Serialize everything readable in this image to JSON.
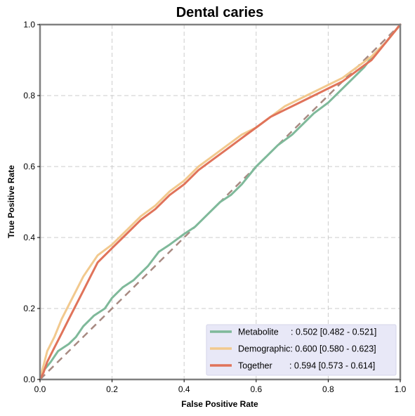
{
  "chart_data": {
    "type": "line",
    "title": "Dental caries",
    "xlabel": "False Positive Rate",
    "ylabel": "True Positive Rate",
    "xlim": [
      0,
      1
    ],
    "ylim": [
      0,
      1
    ],
    "xticks": [
      "0.0",
      "0.2",
      "0.4",
      "0.6",
      "0.8",
      "1.0"
    ],
    "yticks": [
      "0.0",
      "0.2",
      "0.4",
      "0.6",
      "0.8",
      "1.0"
    ],
    "grid": true,
    "legend_position": "bottom-right",
    "diagonal": {
      "color": "#a88a82",
      "style": "dashed"
    },
    "series": [
      {
        "name": "Metabolite",
        "legend_label": "Metabolite     : 0.502 [0.482 - 0.521]",
        "color": "#7fb99a",
        "x": [
          0,
          0.01,
          0.03,
          0.05,
          0.08,
          0.1,
          0.12,
          0.15,
          0.18,
          0.2,
          0.23,
          0.26,
          0.3,
          0.33,
          0.36,
          0.4,
          0.43,
          0.46,
          0.5,
          0.53,
          0.56,
          0.6,
          0.63,
          0.66,
          0.7,
          0.73,
          0.76,
          0.8,
          0.83,
          0.86,
          0.9,
          0.93,
          0.96,
          1.0
        ],
        "y": [
          0,
          0.025,
          0.05,
          0.08,
          0.1,
          0.12,
          0.15,
          0.18,
          0.2,
          0.23,
          0.26,
          0.28,
          0.32,
          0.36,
          0.38,
          0.41,
          0.43,
          0.46,
          0.5,
          0.52,
          0.55,
          0.6,
          0.63,
          0.66,
          0.69,
          0.72,
          0.75,
          0.78,
          0.81,
          0.84,
          0.88,
          0.92,
          0.95,
          1.0
        ]
      },
      {
        "name": "Demographic",
        "legend_label": "Demographic: 0.600 [0.580 - 0.623]",
        "color": "#f2c98e",
        "x": [
          0,
          0.01,
          0.02,
          0.04,
          0.06,
          0.08,
          0.1,
          0.12,
          0.14,
          0.16,
          0.2,
          0.24,
          0.28,
          0.32,
          0.36,
          0.4,
          0.44,
          0.48,
          0.52,
          0.56,
          0.6,
          0.64,
          0.68,
          0.72,
          0.76,
          0.8,
          0.84,
          0.88,
          0.92,
          0.96,
          1.0
        ],
        "y": [
          0,
          0.04,
          0.08,
          0.12,
          0.17,
          0.21,
          0.25,
          0.29,
          0.32,
          0.35,
          0.38,
          0.42,
          0.46,
          0.49,
          0.53,
          0.56,
          0.6,
          0.63,
          0.66,
          0.69,
          0.71,
          0.74,
          0.77,
          0.79,
          0.81,
          0.83,
          0.85,
          0.88,
          0.91,
          0.95,
          1.0
        ]
      },
      {
        "name": "Together",
        "legend_label": "Together       : 0.594 [0.573 - 0.614]",
        "color": "#e0735a",
        "x": [
          0,
          0.01,
          0.02,
          0.04,
          0.06,
          0.08,
          0.1,
          0.12,
          0.14,
          0.16,
          0.2,
          0.24,
          0.28,
          0.32,
          0.36,
          0.4,
          0.44,
          0.48,
          0.52,
          0.56,
          0.6,
          0.64,
          0.68,
          0.72,
          0.76,
          0.8,
          0.84,
          0.88,
          0.92,
          0.96,
          1.0
        ],
        "y": [
          0,
          0.02,
          0.05,
          0.09,
          0.13,
          0.17,
          0.21,
          0.25,
          0.29,
          0.33,
          0.37,
          0.41,
          0.45,
          0.48,
          0.52,
          0.55,
          0.59,
          0.62,
          0.65,
          0.68,
          0.71,
          0.74,
          0.76,
          0.78,
          0.8,
          0.82,
          0.84,
          0.87,
          0.9,
          0.95,
          1.0
        ]
      }
    ]
  }
}
